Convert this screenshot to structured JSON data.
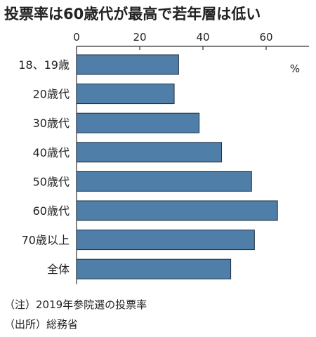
{
  "chart_data": {
    "type": "bar",
    "orientation": "horizontal",
    "title": "投票率は60歳代が最高で若年層は低い",
    "unit": "%",
    "categories": [
      "18、19歳",
      "20歳代",
      "30歳代",
      "40歳代",
      "50歳代",
      "60歳代",
      "70歳以上",
      "全体"
    ],
    "values": [
      32.3,
      30.9,
      38.8,
      45.9,
      55.4,
      63.6,
      56.3,
      48.8
    ],
    "xlim": [
      0,
      70
    ],
    "xticks": [
      0,
      20,
      40,
      60
    ],
    "grid": false,
    "bar_color": "#4f7fa8"
  },
  "notes": {
    "note1": "（注）2019年参院選の投票率",
    "note2": "（出所）総務省"
  }
}
